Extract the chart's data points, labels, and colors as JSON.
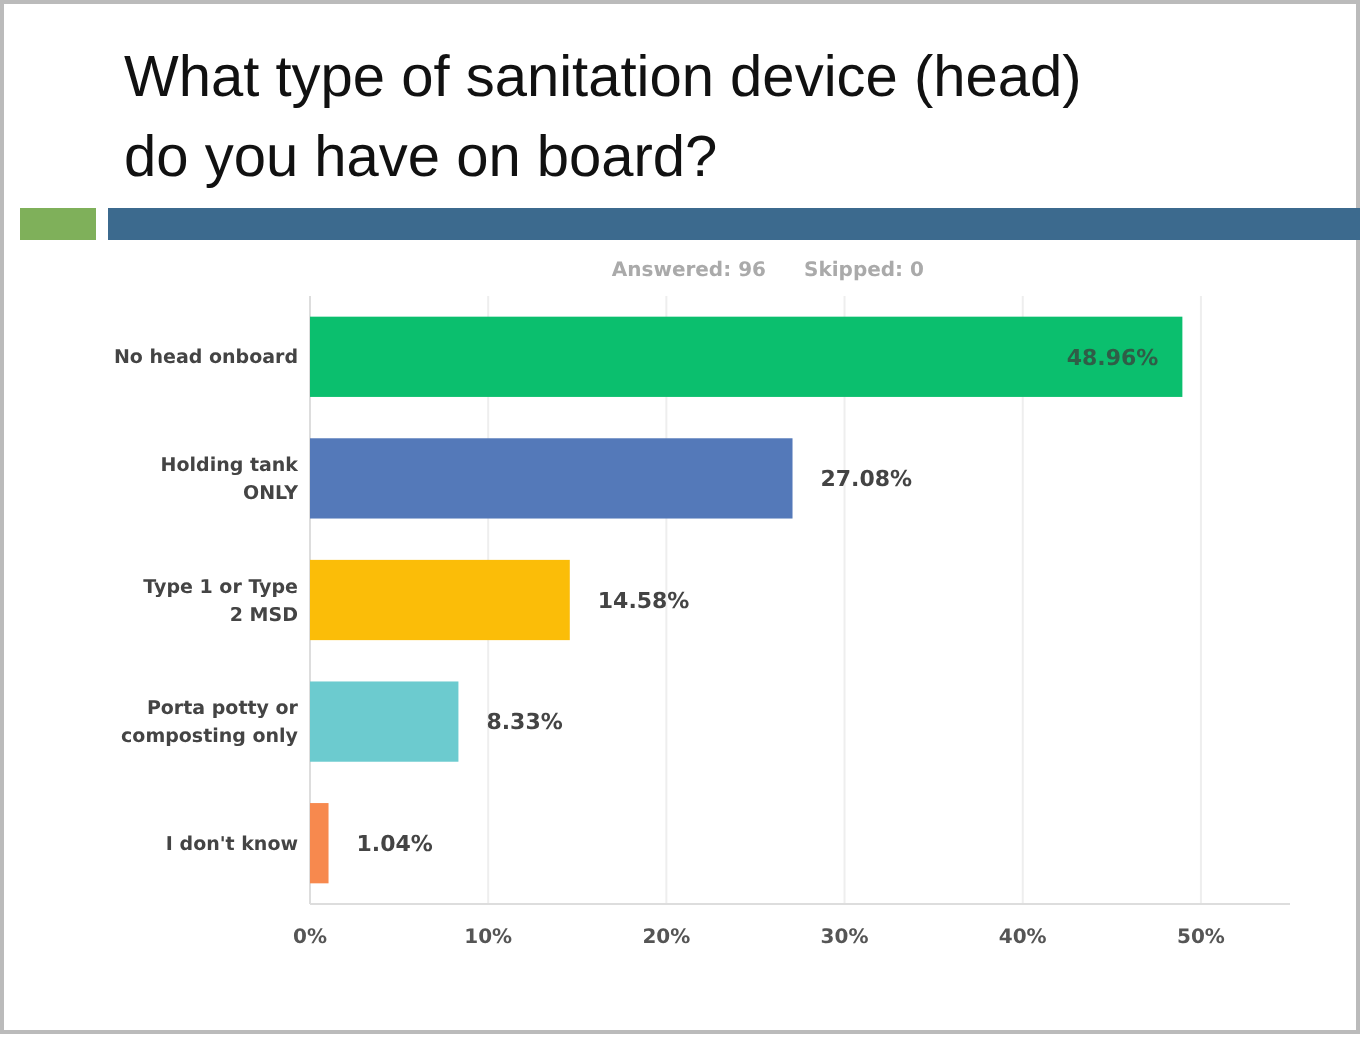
{
  "chart_data": {
    "type": "bar",
    "orientation": "horizontal",
    "title": "What type of sanitation device (head) do you have on board?",
    "subtitle": "Answered: 96",
    "annotations": [
      "Skipped: 0"
    ],
    "categories": [
      "No head onboard",
      "Holding tank ONLY",
      "Type 1 or Type 2 MSD",
      "Porta potty or composting only",
      "I don't know"
    ],
    "values": [
      48.96,
      27.08,
      14.58,
      8.33,
      1.04
    ],
    "colors": [
      "#0bbf6e",
      "#5479b9",
      "#fbbd08",
      "#6ccbcf",
      "#f7894e"
    ],
    "value_labels": [
      "48.96%",
      "27.08%",
      "14.58%",
      "8.33%",
      "1.04%"
    ],
    "xlim": [
      0,
      55
    ],
    "xticks": [
      {
        "value": 0,
        "label": "0%"
      },
      {
        "value": 10,
        "label": "10%"
      },
      {
        "value": 20,
        "label": "20%"
      },
      {
        "value": 30,
        "label": "30%"
      },
      {
        "value": 40,
        "label": "40%"
      },
      {
        "value": 50,
        "label": "50%"
      }
    ],
    "grid": "x"
  }
}
